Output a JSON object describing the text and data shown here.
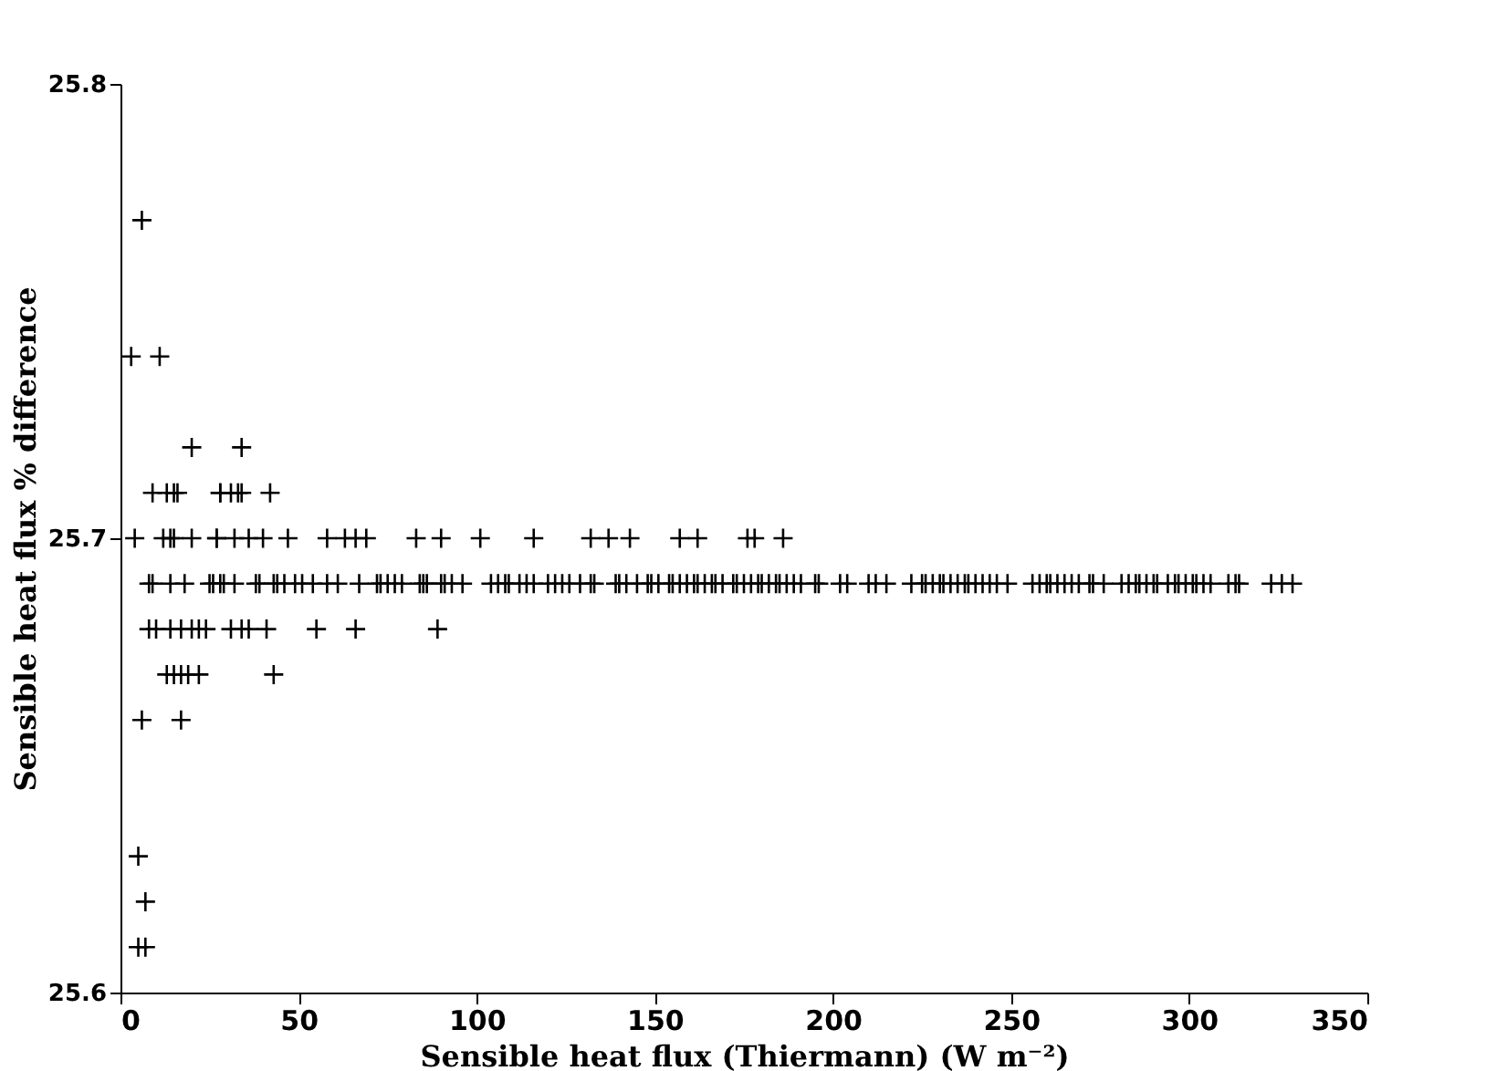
{
  "chart_data": {
    "type": "scatter",
    "xlabel": "Sensible heat flux (Thiermann) (W m⁻²)",
    "ylabel": "Sensible heat flux % difference",
    "xlim": [
      0,
      350
    ],
    "xticks": [
      0,
      50,
      100,
      150,
      200,
      250,
      300,
      350
    ],
    "ylim": [
      25.6,
      25.8
    ],
    "yticks": [
      25.6,
      25.7,
      25.8
    ],
    "grid": false,
    "marker": "cross",
    "legend": false,
    "series": [
      {
        "color": "#000000",
        "x": [
          6,
          3,
          11,
          20,
          34,
          9,
          13,
          15,
          16,
          28,
          28,
          31,
          33,
          34,
          42,
          4,
          12,
          14,
          15,
          20,
          27,
          27,
          32,
          36,
          40,
          47,
          58,
          63,
          66,
          69,
          83,
          90,
          101,
          116,
          132,
          137,
          143,
          157,
          162,
          176,
          178,
          186,
          8,
          10,
          14,
          17,
          20,
          22,
          24,
          31,
          34,
          36,
          41,
          55,
          66,
          89,
          13,
          15,
          17,
          19,
          22,
          43,
          6,
          17,
          5,
          7,
          5,
          7,
          8,
          9,
          14,
          18,
          25,
          26,
          28,
          29,
          32,
          38,
          39,
          43,
          44,
          46,
          49,
          51,
          54,
          58,
          61,
          67,
          72,
          73,
          75,
          77,
          79,
          84,
          85,
          86,
          90,
          91,
          93,
          96,
          104,
          106,
          108,
          109,
          112,
          114,
          116,
          120,
          122,
          124,
          126,
          129,
          132,
          133,
          139,
          140,
          142,
          145,
          148,
          149,
          151,
          154,
          155,
          157,
          159,
          161,
          162,
          164,
          166,
          167,
          169,
          172,
          173,
          175,
          177,
          179,
          180,
          182,
          184,
          185,
          187,
          189,
          191,
          195,
          196,
          202,
          204,
          210,
          212,
          215,
          222,
          225,
          226,
          228,
          230,
          231,
          233,
          235,
          237,
          238,
          240,
          242,
          244,
          246,
          249,
          256,
          258,
          260,
          261,
          263,
          265,
          267,
          269,
          272,
          273,
          276,
          281,
          283,
          285,
          286,
          288,
          290,
          291,
          294,
          296,
          297,
          299,
          301,
          302,
          304,
          306,
          311,
          313,
          314,
          323,
          326,
          329
        ],
        "values": [
          25.77,
          25.74,
          25.74,
          25.72,
          25.72,
          25.71,
          25.71,
          25.71,
          25.71,
          25.71,
          25.71,
          25.71,
          25.71,
          25.71,
          25.71,
          25.7,
          25.7,
          25.7,
          25.7,
          25.7,
          25.7,
          25.7,
          25.7,
          25.7,
          25.7,
          25.7,
          25.7,
          25.7,
          25.7,
          25.7,
          25.7,
          25.7,
          25.7,
          25.7,
          25.7,
          25.7,
          25.7,
          25.7,
          25.7,
          25.7,
          25.7,
          25.7,
          25.68,
          25.68,
          25.68,
          25.68,
          25.68,
          25.68,
          25.68,
          25.68,
          25.68,
          25.68,
          25.68,
          25.68,
          25.68,
          25.68,
          25.67,
          25.67,
          25.67,
          25.67,
          25.67,
          25.67,
          25.66,
          25.66,
          25.63,
          25.62,
          25.61,
          25.61,
          25.69,
          25.69,
          25.69,
          25.69,
          25.69,
          25.69,
          25.69,
          25.69,
          25.69,
          25.69,
          25.69,
          25.69,
          25.69,
          25.69,
          25.69,
          25.69,
          25.69,
          25.69,
          25.69,
          25.69,
          25.69,
          25.69,
          25.69,
          25.69,
          25.69,
          25.69,
          25.69,
          25.69,
          25.69,
          25.69,
          25.69,
          25.69,
          25.69,
          25.69,
          25.69,
          25.69,
          25.69,
          25.69,
          25.69,
          25.69,
          25.69,
          25.69,
          25.69,
          25.69,
          25.69,
          25.69,
          25.69,
          25.69,
          25.69,
          25.69,
          25.69,
          25.69,
          25.69,
          25.69,
          25.69,
          25.69,
          25.69,
          25.69,
          25.69,
          25.69,
          25.69,
          25.69,
          25.69,
          25.69,
          25.69,
          25.69,
          25.69,
          25.69,
          25.69,
          25.69,
          25.69,
          25.69,
          25.69,
          25.69,
          25.69,
          25.69,
          25.69,
          25.69,
          25.69,
          25.69,
          25.69,
          25.69,
          25.69,
          25.69,
          25.69,
          25.69,
          25.69,
          25.69,
          25.69,
          25.69,
          25.69,
          25.69,
          25.69,
          25.69,
          25.69,
          25.69,
          25.69,
          25.69,
          25.69,
          25.69,
          25.69,
          25.69,
          25.69,
          25.69,
          25.69,
          25.69,
          25.69,
          25.69,
          25.69,
          25.69,
          25.69,
          25.69,
          25.69,
          25.69,
          25.69,
          25.69,
          25.69,
          25.69,
          25.69,
          25.69,
          25.69,
          25.69,
          25.69,
          25.69,
          25.69,
          25.69,
          25.69,
          25.69,
          25.69
        ]
      }
    ]
  }
}
